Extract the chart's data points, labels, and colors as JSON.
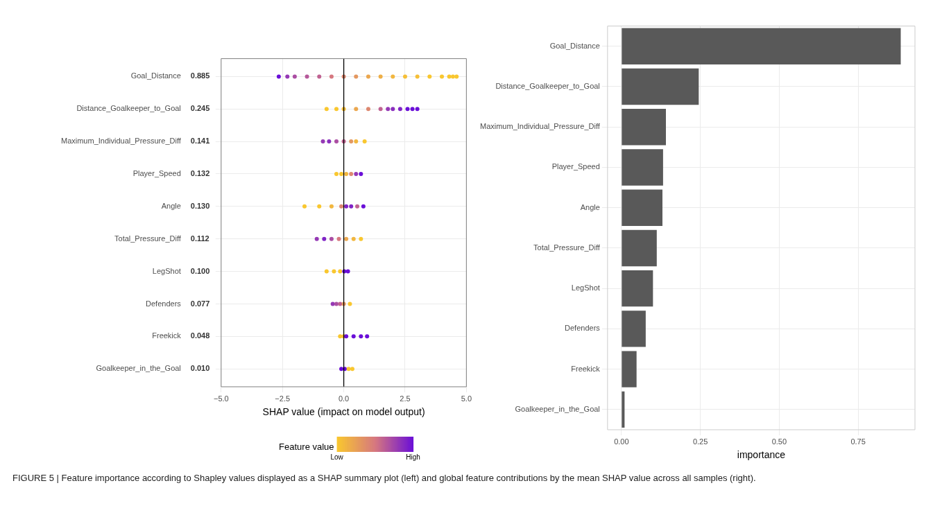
{
  "chart_data": [
    {
      "type": "scatter",
      "orientation": "horizontal",
      "xlabel": "SHAP value (impact on model output)",
      "clabel": "Feature value",
      "grid": true,
      "categories": [
        "Goal_Distance",
        "Distance_Goalkeeper_to_Goal",
        "Maximum_Individual_Pressure_Diff",
        "Player_Speed",
        "Angle",
        "Total_Pressure_Diff",
        "LegShot",
        "Defenders",
        "Freekick",
        "Goalkeeper_in_the_Goal"
      ],
      "series": [
        {
          "x": [
            "Goal_Distance",
            "Goal_Distance",
            "Goal_Distance",
            "Goal_Distance",
            "Goal_Distance",
            "Goal_Distance",
            "Goal_Distance",
            "Goal_Distance",
            "Goal_Distance",
            "Goal_Distance",
            "Goal_Distance",
            "Goal_Distance",
            "Goal_Distance",
            "Goal_Distance",
            "Goal_Distance",
            "Goal_Distance",
            "Goal_Distance",
            "Goal_Distance"
          ],
          "values": [
            -2.65,
            -2.3,
            -2.0,
            -1.5,
            -1.0,
            -0.5,
            0,
            0.5,
            1,
            1.5,
            2,
            2.5,
            3,
            3.5,
            4,
            4.3,
            4.45,
            4.6
          ],
          "colors": [
            "#6a0fd8",
            "#9539b5",
            "#ab4ea3",
            "#b6599a",
            "#c06392",
            "#d67880",
            "#dd8870",
            "#e49860",
            "#eba74f",
            "#eeaf47",
            "#f2b73f",
            "#f6bf37",
            "#f6bf37",
            "#f9c72f",
            "#f9c72f",
            "#f9c72f",
            "#f9c72f",
            "#f9c72f"
          ]
        },
        {
          "x": [
            "Distance_Goalkeeper_to_Goal",
            "Distance_Goalkeeper_to_Goal",
            "Distance_Goalkeeper_to_Goal",
            "Distance_Goalkeeper_to_Goal",
            "Distance_Goalkeeper_to_Goal",
            "Distance_Goalkeeper_to_Goal",
            "Distance_Goalkeeper_to_Goal",
            "Distance_Goalkeeper_to_Goal",
            "Distance_Goalkeeper_to_Goal",
            "Distance_Goalkeeper_to_Goal",
            "Distance_Goalkeeper_to_Goal",
            "Distance_Goalkeeper_to_Goal"
          ],
          "values": [
            -0.7,
            -0.3,
            0,
            0.5,
            1.0,
            1.5,
            1.8,
            2.0,
            2.3,
            2.6,
            2.8,
            3.0
          ],
          "colors": [
            "#f9c72f",
            "#f9c72f",
            "#f6bf37",
            "#eba74f",
            "#dd8870",
            "#c06392",
            "#9539b5",
            "#8a2fbe",
            "#8024c6",
            "#6a0fd8",
            "#6a0fd8",
            "#6a0fd8"
          ]
        },
        {
          "x": [
            "Maximum_Individual_Pressure_Diff",
            "Maximum_Individual_Pressure_Diff",
            "Maximum_Individual_Pressure_Diff",
            "Maximum_Individual_Pressure_Diff",
            "Maximum_Individual_Pressure_Diff",
            "Maximum_Individual_Pressure_Diff",
            "Maximum_Individual_Pressure_Diff"
          ],
          "values": [
            -0.85,
            -0.6,
            -0.3,
            0,
            0.3,
            0.5,
            0.85
          ],
          "colors": [
            "#9539b5",
            "#8a2fbe",
            "#ab4ea3",
            "#c06392",
            "#e49860",
            "#f2b73f",
            "#f9c72f"
          ]
        },
        {
          "x": [
            "Player_Speed",
            "Player_Speed",
            "Player_Speed",
            "Player_Speed",
            "Player_Speed",
            "Player_Speed"
          ],
          "values": [
            -0.3,
            -0.1,
            0.1,
            0.3,
            0.5,
            0.7
          ],
          "colors": [
            "#f9c72f",
            "#f9c72f",
            "#f2b73f",
            "#dd8870",
            "#9539b5",
            "#6a0fd8"
          ]
        },
        {
          "x": [
            "Angle",
            "Angle",
            "Angle",
            "Angle",
            "Angle",
            "Angle",
            "Angle",
            "Angle"
          ],
          "values": [
            -1.6,
            -1.0,
            -0.5,
            -0.1,
            0.1,
            0.3,
            0.55,
            0.8
          ],
          "colors": [
            "#f9c72f",
            "#f9c72f",
            "#f2b73f",
            "#dd8870",
            "#8024c6",
            "#8024c6",
            "#c06392",
            "#6a0fd8"
          ]
        },
        {
          "x": [
            "Total_Pressure_Diff",
            "Total_Pressure_Diff",
            "Total_Pressure_Diff",
            "Total_Pressure_Diff",
            "Total_Pressure_Diff",
            "Total_Pressure_Diff",
            "Total_Pressure_Diff"
          ],
          "values": [
            -1.1,
            -0.8,
            -0.5,
            -0.2,
            0.1,
            0.4,
            0.7
          ],
          "colors": [
            "#9539b5",
            "#8024c6",
            "#ab4ea3",
            "#d67880",
            "#eba74f",
            "#f2b73f",
            "#f9c72f"
          ]
        },
        {
          "x": [
            "LegShot",
            "LegShot",
            "LegShot",
            "LegShot",
            "LegShot"
          ],
          "values": [
            -0.7,
            -0.4,
            -0.15,
            0.02,
            0.17
          ],
          "colors": [
            "#f9c72f",
            "#f9c72f",
            "#f9c72f",
            "#6a0fd8",
            "#6a0fd8"
          ]
        },
        {
          "x": [
            "Defenders",
            "Defenders",
            "Defenders",
            "Defenders",
            "Defenders"
          ],
          "values": [
            -0.45,
            -0.3,
            -0.15,
            0,
            0.25
          ],
          "colors": [
            "#9539b5",
            "#ab4ea3",
            "#c06392",
            "#e49860",
            "#f9c72f"
          ]
        },
        {
          "x": [
            "Freekick",
            "Freekick",
            "Freekick",
            "Freekick",
            "Freekick",
            "Freekick"
          ],
          "values": [
            -0.15,
            0,
            0.1,
            0.4,
            0.7,
            0.95
          ],
          "colors": [
            "#f9c72f",
            "#f6bf37",
            "#6a0fd8",
            "#6a0fd8",
            "#6a0fd8",
            "#6a0fd8"
          ]
        },
        {
          "x": [
            "Goalkeeper_in_the_Goal",
            "Goalkeeper_in_the_Goal",
            "Goalkeeper_in_the_Goal",
            "Goalkeeper_in_the_Goal"
          ],
          "values": [
            -0.1,
            0.04,
            0.2,
            0.35
          ],
          "colors": [
            "#6a0fd8",
            "#6a0fd8",
            "#f9c72f",
            "#f9c72f"
          ]
        }
      ],
      "xlim": [
        -5,
        5
      ],
      "xticks": [
        {
          "value": -5,
          "label": "−5.0"
        },
        {
          "value": -2.5,
          "label": "−2.5"
        },
        {
          "value": 0,
          "label": "0.0"
        },
        {
          "value": 2.5,
          "label": "2.5"
        },
        {
          "value": 5,
          "label": "5.0"
        }
      ],
      "clim": [
        0,
        1
      ],
      "cticks": [
        {
          "value": 0,
          "label": "Low"
        },
        {
          "value": 1,
          "label": "High"
        }
      ],
      "ref_lines": [
        {
          "axis": "x",
          "value": 0,
          "color": "#000000"
        }
      ],
      "annotations": [
        "0.885",
        "0.245",
        "0.141",
        "0.132",
        "0.130",
        "0.112",
        "0.100",
        "0.077",
        "0.048",
        "0.010"
      ]
    },
    {
      "type": "bar",
      "orientation": "horizontal",
      "xlabel": "importance",
      "grid": true,
      "color": "#595959",
      "categories": [
        "Goal_Distance",
        "Distance_Goalkeeper_to_Goal",
        "Maximum_Individual_Pressure_Diff",
        "Player_Speed",
        "Angle",
        "Total_Pressure_Diff",
        "LegShot",
        "Defenders",
        "Freekick",
        "Goalkeeper_in_the_Goal"
      ],
      "values": [
        0.885,
        0.245,
        0.141,
        0.132,
        0.13,
        0.112,
        0.1,
        0.077,
        0.048,
        0.01
      ],
      "xlim": [
        -0.044,
        0.93
      ],
      "xticks": [
        {
          "value": 0,
          "label": "0.00"
        },
        {
          "value": 0.25,
          "label": "0.25"
        },
        {
          "value": 0.5,
          "label": "0.50"
        },
        {
          "value": 0.75,
          "label": "0.75"
        }
      ],
      "annotations": [
        "FIGURE 5 | Feature importance according to Shapley values displayed as a SHAP summary plot (left) and global feature contributions by the mean SHAP value across all samples (right)."
      ]
    }
  ]
}
